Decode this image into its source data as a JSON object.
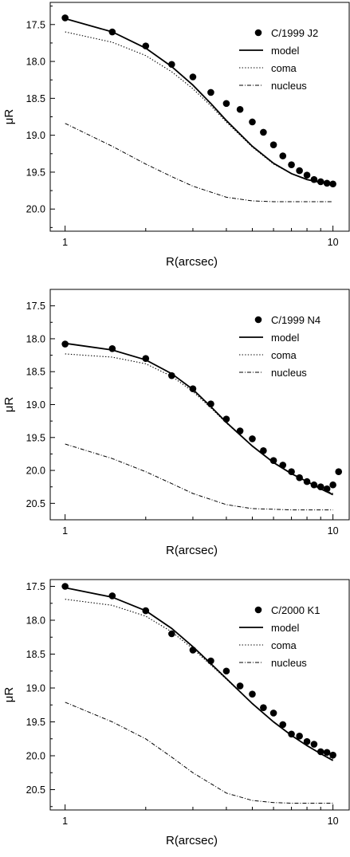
{
  "chart_data": [
    {
      "type": "scatter",
      "xscale": "log",
      "xlim": [
        0.88,
        11.5
      ],
      "ylim": [
        20.3,
        17.2
      ],
      "y_inverted": true,
      "xlabel": "R(arcsec)",
      "ylabel": "μR",
      "xticks": [
        1,
        10
      ],
      "xtick_labels": [
        "1",
        "10"
      ],
      "yticks": [
        17.5,
        18.0,
        18.5,
        19.0,
        19.5,
        20.0
      ],
      "ytick_labels": [
        "17.5",
        "18.0",
        "18.5",
        "19.0",
        "19.5",
        "20.0"
      ],
      "legend_position": "top-right",
      "series": [
        {
          "name": "C/1999 J2",
          "style": "points",
          "x": [
            1.0,
            1.5,
            2.0,
            2.5,
            3.0,
            3.5,
            4.0,
            4.5,
            5.0,
            5.5,
            6.0,
            6.5,
            7.0,
            7.5,
            8.0,
            8.5,
            9.0,
            9.5,
            10.0
          ],
          "y": [
            17.41,
            17.6,
            17.79,
            18.04,
            18.21,
            18.42,
            18.57,
            18.65,
            18.82,
            18.96,
            19.13,
            19.28,
            19.4,
            19.48,
            19.54,
            19.6,
            19.63,
            19.65,
            19.66
          ]
        },
        {
          "name": "model",
          "style": "solid",
          "x": [
            1.0,
            1.5,
            2.0,
            2.5,
            3.0,
            3.5,
            4.0,
            5.0,
            6.0,
            7.0,
            8.0,
            9.0,
            10.0
          ],
          "y": [
            17.42,
            17.6,
            17.82,
            18.07,
            18.32,
            18.57,
            18.8,
            19.15,
            19.38,
            19.52,
            19.6,
            19.64,
            19.66
          ]
        },
        {
          "name": "coma",
          "style": "dotted",
          "x": [
            1.0,
            1.5,
            2.0,
            2.5,
            3.0,
            3.5,
            4.0,
            5.0,
            6.0,
            7.0,
            8.0,
            9.0,
            10.0
          ],
          "y": [
            17.6,
            17.74,
            17.92,
            18.14,
            18.37,
            18.6,
            18.82,
            19.16,
            19.39,
            19.52,
            19.6,
            19.64,
            19.66
          ]
        },
        {
          "name": "nucleus",
          "style": "dash-dot",
          "x": [
            1.0,
            1.5,
            2.0,
            2.5,
            3.0,
            4.0,
            5.0,
            6.0,
            7.0,
            8.0,
            10.0
          ],
          "y": [
            18.84,
            19.15,
            19.39,
            19.56,
            19.69,
            19.84,
            19.89,
            19.9,
            19.9,
            19.9,
            19.9
          ]
        }
      ]
    },
    {
      "type": "scatter",
      "xscale": "log",
      "xlim": [
        0.88,
        11.5
      ],
      "ylim": [
        20.75,
        17.25
      ],
      "y_inverted": true,
      "xlabel": "R(arcsec)",
      "ylabel": "μR",
      "xticks": [
        1,
        10
      ],
      "xtick_labels": [
        "1",
        "10"
      ],
      "yticks": [
        17.5,
        18.0,
        18.5,
        19.0,
        19.5,
        20.0,
        20.5
      ],
      "ytick_labels": [
        "17.5",
        "18.0",
        "18.5",
        "19.0",
        "19.5",
        "20.0",
        "20.5"
      ],
      "legend_position": "top-right",
      "series": [
        {
          "name": "C/1999 N4",
          "style": "points",
          "x": [
            1.0,
            1.5,
            2.0,
            2.5,
            3.0,
            3.5,
            4.0,
            4.5,
            5.0,
            5.5,
            6.0,
            6.5,
            7.0,
            7.5,
            8.0,
            8.5,
            9.0,
            9.5,
            10.0,
            10.5
          ],
          "y": [
            18.08,
            18.15,
            18.3,
            18.56,
            18.76,
            18.99,
            19.22,
            19.4,
            19.52,
            19.7,
            19.85,
            19.92,
            20.02,
            20.11,
            20.17,
            20.22,
            20.25,
            20.28,
            20.22,
            20.02
          ]
        },
        {
          "name": "model",
          "style": "solid",
          "x": [
            1.0,
            1.5,
            2.0,
            2.5,
            3.0,
            3.5,
            4.0,
            5.0,
            6.0,
            7.0,
            8.0,
            9.0,
            10.0
          ],
          "y": [
            18.07,
            18.17,
            18.32,
            18.53,
            18.77,
            19.03,
            19.27,
            19.63,
            19.88,
            20.05,
            20.17,
            20.28,
            20.37
          ]
        },
        {
          "name": "coma",
          "style": "dotted",
          "x": [
            1.0,
            1.5,
            2.0,
            2.5,
            3.0,
            3.5,
            4.0,
            5.0,
            6.0,
            7.0,
            8.0,
            9.0,
            10.0
          ],
          "y": [
            18.23,
            18.28,
            18.38,
            18.57,
            18.8,
            19.05,
            19.28,
            19.63,
            19.88,
            20.05,
            20.17,
            20.28,
            20.35
          ]
        },
        {
          "name": "nucleus",
          "style": "dash-dot",
          "x": [
            1.0,
            1.5,
            2.0,
            2.5,
            3.0,
            4.0,
            5.0,
            6.0,
            7.0,
            8.0,
            10.0
          ],
          "y": [
            19.6,
            19.82,
            20.02,
            20.2,
            20.35,
            20.52,
            20.58,
            20.59,
            20.6,
            20.6,
            20.6
          ]
        }
      ]
    },
    {
      "type": "scatter",
      "xscale": "log",
      "xlim": [
        0.88,
        11.5
      ],
      "ylim": [
        20.8,
        17.4
      ],
      "y_inverted": true,
      "xlabel": "R(arcsec)",
      "ylabel": "μR",
      "xticks": [
        1,
        10
      ],
      "xtick_labels": [
        "1",
        "10"
      ],
      "yticks": [
        17.5,
        18.0,
        18.5,
        19.0,
        19.5,
        20.0,
        20.5
      ],
      "ytick_labels": [
        "17.5",
        "18.0",
        "18.5",
        "19.0",
        "19.5",
        "20.0",
        "20.5"
      ],
      "legend_position": "top-right",
      "series": [
        {
          "name": "C/2000 K1",
          "style": "points",
          "x": [
            1.0,
            1.5,
            2.0,
            2.5,
            3.0,
            3.5,
            4.0,
            4.5,
            5.0,
            5.5,
            6.0,
            6.5,
            7.0,
            7.5,
            8.0,
            8.5,
            9.0,
            9.5,
            10.0
          ],
          "y": [
            17.5,
            17.64,
            17.86,
            18.2,
            18.44,
            18.6,
            18.75,
            18.97,
            19.09,
            19.29,
            19.37,
            19.54,
            19.68,
            19.71,
            19.79,
            19.83,
            19.94,
            19.95,
            19.99
          ]
        },
        {
          "name": "model",
          "style": "solid",
          "x": [
            1.0,
            1.5,
            2.0,
            2.5,
            3.0,
            3.5,
            4.0,
            5.0,
            6.0,
            7.0,
            8.0,
            9.0,
            10.0
          ],
          "y": [
            17.52,
            17.66,
            17.86,
            18.12,
            18.39,
            18.64,
            18.86,
            19.23,
            19.5,
            19.7,
            19.85,
            19.97,
            20.07
          ]
        },
        {
          "name": "coma",
          "style": "dotted",
          "x": [
            1.0,
            1.5,
            2.0,
            2.5,
            3.0,
            3.5,
            4.0,
            5.0,
            6.0,
            7.0,
            8.0,
            9.0,
            10.0
          ],
          "y": [
            17.69,
            17.78,
            17.94,
            18.17,
            18.42,
            18.66,
            18.87,
            19.23,
            19.5,
            19.7,
            19.85,
            19.97,
            20.05
          ]
        },
        {
          "name": "nucleus",
          "style": "dash-dot",
          "x": [
            1.0,
            1.5,
            2.0,
            2.5,
            3.0,
            4.0,
            5.0,
            6.0,
            7.0,
            8.0,
            10.0
          ],
          "y": [
            19.21,
            19.5,
            19.75,
            20.02,
            20.25,
            20.55,
            20.66,
            20.69,
            20.7,
            20.7,
            20.7
          ]
        }
      ]
    }
  ]
}
